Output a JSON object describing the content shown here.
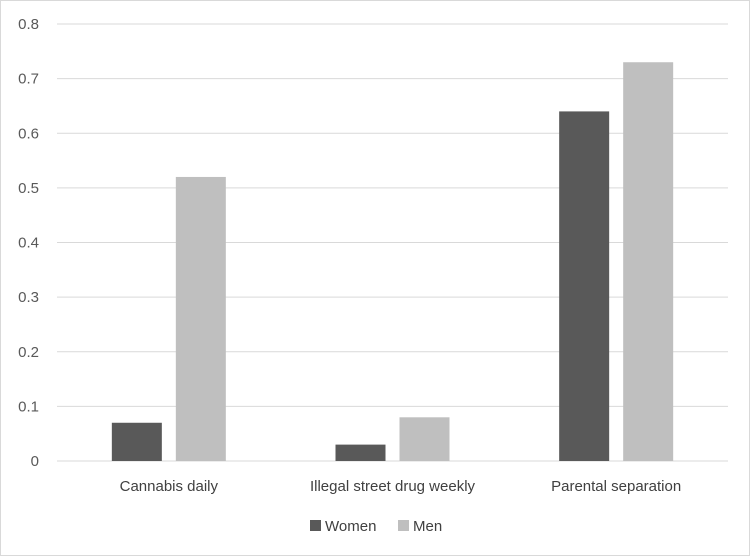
{
  "chart_data": {
    "type": "bar",
    "categories": [
      "Cannabis daily",
      "Illegal street drug weekly",
      "Parental separation"
    ],
    "series": [
      {
        "name": "Women",
        "values": [
          0.07,
          0.03,
          0.64
        ],
        "color": "#595959"
      },
      {
        "name": "Men",
        "values": [
          0.52,
          0.08,
          0.73
        ],
        "color": "#bfbfbf"
      }
    ],
    "ylim": [
      0,
      0.8
    ],
    "yticks": [
      "0",
      "0.1",
      "0.2",
      "0.3",
      "0.4",
      "0.5",
      "0.6",
      "0.7",
      "0.8"
    ],
    "grid": true,
    "legend_position": "bottom"
  }
}
